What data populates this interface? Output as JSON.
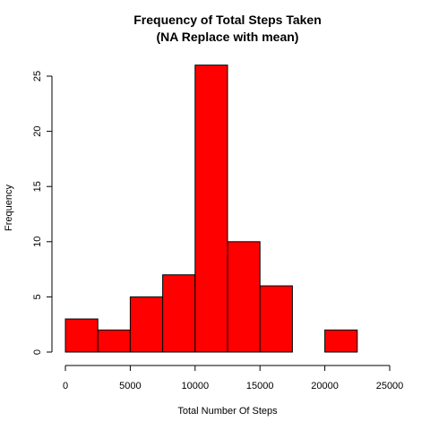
{
  "chart_data": {
    "type": "bar",
    "title": "Frequency of Total Steps Taken",
    "subtitle": "(NA Replace with mean)",
    "xlabel": "Total Number Of Steps",
    "ylabel": "Frequency",
    "bins": [
      {
        "from": 0,
        "to": 2500,
        "count": 3
      },
      {
        "from": 2500,
        "to": 5000,
        "count": 2
      },
      {
        "from": 5000,
        "to": 7500,
        "count": 5
      },
      {
        "from": 7500,
        "to": 10000,
        "count": 7
      },
      {
        "from": 10000,
        "to": 12500,
        "count": 26
      },
      {
        "from": 12500,
        "to": 15000,
        "count": 10
      },
      {
        "from": 15000,
        "to": 17500,
        "count": 6
      },
      {
        "from": 17500,
        "to": 20000,
        "count": 0
      },
      {
        "from": 20000,
        "to": 22500,
        "count": 2
      },
      {
        "from": 22500,
        "to": 25000,
        "count": 0
      }
    ],
    "xlim": [
      0,
      25000
    ],
    "ylim": [
      0,
      25
    ],
    "x_ticks": [
      "0",
      "5000",
      "10000",
      "15000",
      "20000",
      "25000"
    ],
    "y_ticks": [
      "0",
      "5",
      "10",
      "15",
      "20",
      "25"
    ],
    "grid": false,
    "legend": "none",
    "bar_color": "#ff0000",
    "border_color": "#000000"
  }
}
